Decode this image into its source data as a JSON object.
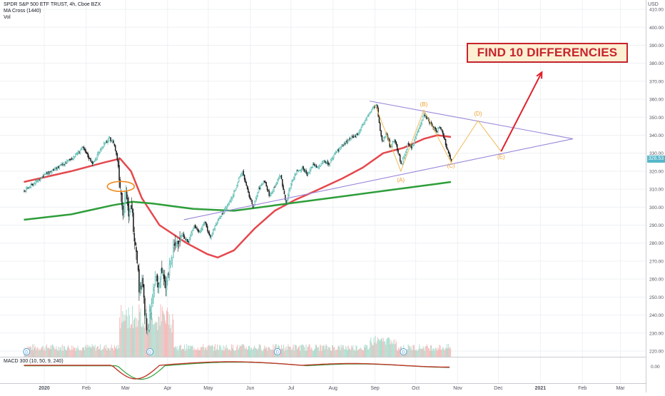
{
  "chart_data": {
    "type": "candlestick",
    "legend_lines": [
      "SPDR S&P 500 ETF TRUST, 4h, Cboe BZX",
      "MA Cross (1440)",
      "Vol"
    ],
    "annotation": "FIND 10 DIFFERENCIES",
    "currency": "USD",
    "last_price": "326.53",
    "macd_label": "MACD 300 (10, 50, 9, 240)",
    "ylim": [
      218,
      414
    ],
    "y_ticks": [
      "220.00",
      "230.00",
      "240.00",
      "250.00",
      "260.00",
      "270.00",
      "280.00",
      "290.00",
      "300.00",
      "310.00",
      "320.00",
      "330.00",
      "340.00",
      "350.00",
      "360.00",
      "370.00",
      "380.00",
      "390.00",
      "400.00",
      "410.00"
    ],
    "macd_tick": "0.00",
    "x_ticks": [
      "2020",
      "Feb",
      "Mar",
      "Apr",
      "May",
      "Jun",
      "Jul",
      "Aug",
      "Sep",
      "Oct",
      "Nov",
      "Dec",
      "2021",
      "Feb",
      "Mar"
    ],
    "x_tick_days": [
      0,
      31,
      60,
      91,
      121,
      152,
      182,
      213,
      244,
      274,
      305,
      335,
      366,
      397,
      425
    ],
    "wave_labels": [
      {
        "label": "(A)",
        "day": 263,
        "price": 314
      },
      {
        "label": "(B)",
        "day": 280,
        "price": 356
      },
      {
        "label": "(C)",
        "day": 300,
        "price": 322
      },
      {
        "label": "(D)",
        "day": 320,
        "price": 351
      },
      {
        "label": "(E)",
        "day": 337,
        "price": 327
      }
    ],
    "price_path": [
      {
        "day": -15,
        "price": 309
      },
      {
        "day": 0,
        "price": 318
      },
      {
        "day": 10,
        "price": 322
      },
      {
        "day": 20,
        "price": 327
      },
      {
        "day": 28,
        "price": 333
      },
      {
        "day": 32,
        "price": 328
      },
      {
        "day": 36,
        "price": 324
      },
      {
        "day": 40,
        "price": 331
      },
      {
        "day": 44,
        "price": 335
      },
      {
        "day": 48,
        "price": 338
      },
      {
        "day": 51,
        "price": 336
      },
      {
        "day": 54,
        "price": 325
      },
      {
        "day": 56,
        "price": 310
      },
      {
        "day": 58,
        "price": 297
      },
      {
        "day": 60,
        "price": 310
      },
      {
        "day": 62,
        "price": 293
      },
      {
        "day": 64,
        "price": 302
      },
      {
        "day": 66,
        "price": 285
      },
      {
        "day": 68,
        "price": 275
      },
      {
        "day": 70,
        "price": 252
      },
      {
        "day": 72,
        "price": 262
      },
      {
        "day": 74,
        "price": 240
      },
      {
        "day": 76,
        "price": 228
      },
      {
        "day": 78,
        "price": 245
      },
      {
        "day": 80,
        "price": 250
      },
      {
        "day": 82,
        "price": 262
      },
      {
        "day": 84,
        "price": 255
      },
      {
        "day": 86,
        "price": 266
      },
      {
        "day": 89,
        "price": 255
      },
      {
        "day": 92,
        "price": 265
      },
      {
        "day": 95,
        "price": 276
      },
      {
        "day": 98,
        "price": 282
      },
      {
        "day": 102,
        "price": 285
      },
      {
        "day": 106,
        "price": 280
      },
      {
        "day": 110,
        "price": 290
      },
      {
        "day": 114,
        "price": 286
      },
      {
        "day": 118,
        "price": 292
      },
      {
        "day": 122,
        "price": 283
      },
      {
        "day": 126,
        "price": 290
      },
      {
        "day": 130,
        "price": 295
      },
      {
        "day": 134,
        "price": 300
      },
      {
        "day": 138,
        "price": 305
      },
      {
        "day": 142,
        "price": 313
      },
      {
        "day": 146,
        "price": 320
      },
      {
        "day": 150,
        "price": 308
      },
      {
        "day": 154,
        "price": 300
      },
      {
        "day": 158,
        "price": 310
      },
      {
        "day": 162,
        "price": 315
      },
      {
        "day": 166,
        "price": 306
      },
      {
        "day": 170,
        "price": 312
      },
      {
        "day": 174,
        "price": 318
      },
      {
        "day": 178,
        "price": 302
      },
      {
        "day": 182,
        "price": 314
      },
      {
        "day": 186,
        "price": 320
      },
      {
        "day": 190,
        "price": 322
      },
      {
        "day": 194,
        "price": 318
      },
      {
        "day": 198,
        "price": 324
      },
      {
        "day": 202,
        "price": 322
      },
      {
        "day": 206,
        "price": 326
      },
      {
        "day": 210,
        "price": 324
      },
      {
        "day": 214,
        "price": 330
      },
      {
        "day": 218,
        "price": 333
      },
      {
        "day": 222,
        "price": 336
      },
      {
        "day": 226,
        "price": 338
      },
      {
        "day": 230,
        "price": 340
      },
      {
        "day": 234,
        "price": 345
      },
      {
        "day": 238,
        "price": 350
      },
      {
        "day": 242,
        "price": 355
      },
      {
        "day": 245,
        "price": 357
      },
      {
        "day": 247,
        "price": 345
      },
      {
        "day": 249,
        "price": 336
      },
      {
        "day": 252,
        "price": 342
      },
      {
        "day": 255,
        "price": 333
      },
      {
        "day": 258,
        "price": 338
      },
      {
        "day": 261,
        "price": 330
      },
      {
        "day": 263,
        "price": 323
      },
      {
        "day": 265,
        "price": 328
      },
      {
        "day": 268,
        "price": 335
      },
      {
        "day": 271,
        "price": 333
      },
      {
        "day": 274,
        "price": 340
      },
      {
        "day": 277,
        "price": 346
      },
      {
        "day": 280,
        "price": 352
      },
      {
        "day": 283,
        "price": 348
      },
      {
        "day": 286,
        "price": 345
      },
      {
        "day": 289,
        "price": 342
      },
      {
        "day": 292,
        "price": 345
      },
      {
        "day": 294,
        "price": 340
      },
      {
        "day": 297,
        "price": 332
      },
      {
        "day": 300,
        "price": 326
      }
    ],
    "series": [
      {
        "name": "MA short",
        "color": "#e5484d",
        "points": [
          {
            "day": -15,
            "price": 314
          },
          {
            "day": 20,
            "price": 320
          },
          {
            "day": 45,
            "price": 325
          },
          {
            "day": 56,
            "price": 327
          },
          {
            "day": 64,
            "price": 320
          },
          {
            "day": 72,
            "price": 305
          },
          {
            "day": 85,
            "price": 290
          },
          {
            "day": 105,
            "price": 280
          },
          {
            "day": 120,
            "price": 274
          },
          {
            "day": 128,
            "price": 272
          },
          {
            "day": 140,
            "price": 276
          },
          {
            "day": 155,
            "price": 288
          },
          {
            "day": 170,
            "price": 298
          },
          {
            "day": 185,
            "price": 304
          },
          {
            "day": 200,
            "price": 309
          },
          {
            "day": 220,
            "price": 316
          },
          {
            "day": 235,
            "price": 322
          },
          {
            "day": 250,
            "price": 330
          },
          {
            "day": 265,
            "price": 333
          },
          {
            "day": 280,
            "price": 338
          },
          {
            "day": 290,
            "price": 340
          },
          {
            "day": 300,
            "price": 339
          }
        ]
      },
      {
        "name": "MA long",
        "color": "#2e9e3a",
        "points": [
          {
            "day": -15,
            "price": 293
          },
          {
            "day": 20,
            "price": 296
          },
          {
            "day": 50,
            "price": 301
          },
          {
            "day": 65,
            "price": 303
          },
          {
            "day": 80,
            "price": 302
          },
          {
            "day": 110,
            "price": 299
          },
          {
            "day": 140,
            "price": 298
          },
          {
            "day": 170,
            "price": 301
          },
          {
            "day": 200,
            "price": 304
          },
          {
            "day": 230,
            "price": 307
          },
          {
            "day": 260,
            "price": 310
          },
          {
            "day": 290,
            "price": 313
          },
          {
            "day": 300,
            "price": 314
          }
        ]
      }
    ],
    "triangle_lines": [
      {
        "from": {
          "day": 240,
          "price": 359
        },
        "to": {
          "day": 390,
          "price": 338
        }
      },
      {
        "from": {
          "day": 103,
          "price": 293
        },
        "to": {
          "day": 390,
          "price": 338
        }
      }
    ],
    "wave_path": [
      {
        "day": 244,
        "price": 357
      },
      {
        "day": 263,
        "price": 320
      },
      {
        "day": 280,
        "price": 354
      },
      {
        "day": 300,
        "price": 325
      },
      {
        "day": 320,
        "price": 348
      },
      {
        "day": 337,
        "price": 331
      }
    ],
    "arrow": {
      "from": {
        "day": 337,
        "price": 331
      },
      "to": {
        "day": 367,
        "price": 375
      }
    }
  }
}
